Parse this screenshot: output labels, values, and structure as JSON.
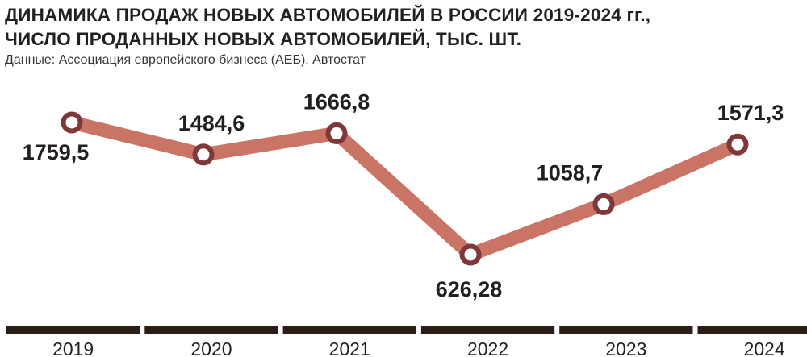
{
  "title_line1": "ДИНАМИКА ПРОДАЖ НОВЫХ АВТОМОБИЛЕЙ В РОССИИ 2019-2024 гг.,",
  "title_line2": "ЧИСЛО ПРОДАННЫХ НОВЫХ АВТОМОБИЛЕЙ, ТЫС. ШТ.",
  "source": "Данные: Ассоциация европейского бизнеса (АЕБ), Автостат",
  "colors": {
    "line": "#c97464",
    "marker_ring": "#7e3839",
    "marker_fill": "#ffffff",
    "axis": "#2b1e18",
    "text": "#231f20"
  },
  "chart_data": {
    "type": "line",
    "title": "ДИНАМИКА ПРОДАЖ НОВЫХ АВТОМОБИЛЕЙ В РОССИИ 2019-2024 гг., ЧИСЛО ПРОДАННЫХ НОВЫХ АВТОМОБИЛЕЙ, ТЫС. ШТ.",
    "categories": [
      "2019",
      "2020",
      "2021",
      "2022",
      "2023",
      "2024"
    ],
    "values": [
      1759.5,
      1484.6,
      1666.8,
      626.28,
      1058.7,
      1571.3
    ],
    "labels": [
      "1759,5",
      "1484,6",
      "1666,8",
      "626,28",
      "1058,7",
      "1571,3"
    ],
    "label_positions": [
      "below",
      "above",
      "above",
      "below",
      "above",
      "above"
    ],
    "xlabel": "",
    "ylabel": "",
    "grid": false,
    "legend": "none"
  }
}
